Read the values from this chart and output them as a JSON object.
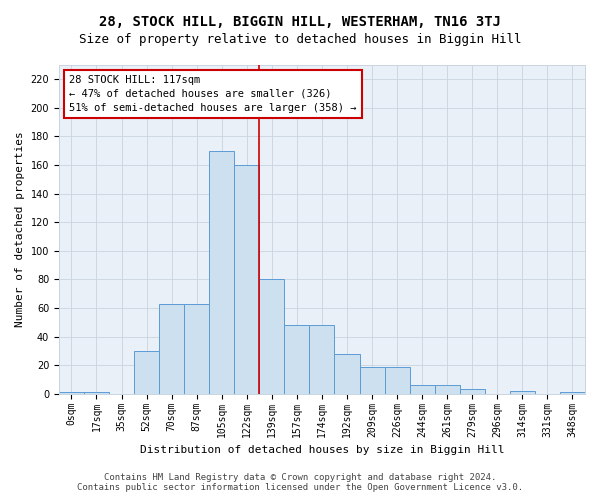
{
  "title": "28, STOCK HILL, BIGGIN HILL, WESTERHAM, TN16 3TJ",
  "subtitle": "Size of property relative to detached houses in Biggin Hill",
  "xlabel": "Distribution of detached houses by size in Biggin Hill",
  "ylabel": "Number of detached properties",
  "bin_labels": [
    "0sqm",
    "17sqm",
    "35sqm",
    "52sqm",
    "70sqm",
    "87sqm",
    "105sqm",
    "122sqm",
    "139sqm",
    "157sqm",
    "174sqm",
    "192sqm",
    "209sqm",
    "226sqm",
    "244sqm",
    "261sqm",
    "279sqm",
    "296sqm",
    "314sqm",
    "331sqm",
    "348sqm"
  ],
  "bar_heights": [
    1,
    1,
    0,
    30,
    63,
    63,
    170,
    160,
    80,
    48,
    48,
    28,
    19,
    19,
    6,
    6,
    3,
    0,
    2,
    0,
    1
  ],
  "bar_color": "#cce0f0",
  "bar_edge_color": "#5b9bd5",
  "vline_x_idx": 7.5,
  "vline_color": "#cc0000",
  "annotation_text": "28 STOCK HILL: 117sqm\n← 47% of detached houses are smaller (326)\n51% of semi-detached houses are larger (358) →",
  "annotation_box_color": "#ffffff",
  "annotation_box_edge": "#cc0000",
  "ylim": [
    0,
    230
  ],
  "yticks": [
    0,
    20,
    40,
    60,
    80,
    100,
    120,
    140,
    160,
    180,
    200,
    220
  ],
  "footer_line1": "Contains HM Land Registry data © Crown copyright and database right 2024.",
  "footer_line2": "Contains public sector information licensed under the Open Government Licence v3.0.",
  "plot_bg_color": "#eaf0f8",
  "grid_color": "#c8d4e0",
  "title_fontsize": 10,
  "subtitle_fontsize": 9,
  "axis_label_fontsize": 8,
  "tick_fontsize": 7,
  "footer_fontsize": 6.5,
  "annotation_fontsize": 7.5
}
